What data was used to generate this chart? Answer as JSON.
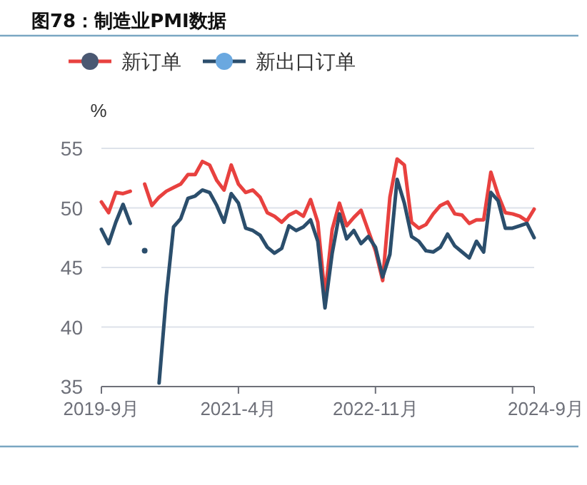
{
  "chart_data": {
    "type": "line",
    "title": "图78：制造业PMI数据",
    "ylabel": "%",
    "categories": [
      "2019-9月",
      null,
      null,
      null,
      null,
      null,
      null,
      null,
      null,
      null,
      null,
      null,
      null,
      null,
      null,
      null,
      null,
      null,
      null,
      "2021-4月",
      null,
      null,
      null,
      null,
      null,
      null,
      null,
      null,
      null,
      null,
      null,
      null,
      null,
      null,
      null,
      null,
      null,
      null,
      "2022-11月",
      null,
      null,
      null,
      null,
      null,
      null,
      null,
      null,
      null,
      null,
      null,
      null,
      null,
      null,
      null,
      null,
      null,
      null,
      null,
      null,
      null,
      "2024-9月"
    ],
    "series": [
      {
        "name": "新订单",
        "color": "#e8413f",
        "values": [
          50.5,
          49.6,
          51.3,
          51.2,
          51.4,
          null,
          52.0,
          50.2,
          50.9,
          51.4,
          51.7,
          52.0,
          52.8,
          52.8,
          53.9,
          53.6,
          52.3,
          51.5,
          53.6,
          52.0,
          51.3,
          51.5,
          50.9,
          49.6,
          49.3,
          48.8,
          49.4,
          49.7,
          49.3,
          50.7,
          48.8,
          42.6,
          48.2,
          50.4,
          48.5,
          49.2,
          49.8,
          48.1,
          46.4,
          43.9,
          50.9,
          54.1,
          53.6,
          48.8,
          48.3,
          48.6,
          49.5,
          50.2,
          50.5,
          49.5,
          49.4,
          48.7,
          49.0,
          49.0,
          53.0,
          51.1,
          49.6,
          49.5,
          49.3,
          48.9,
          49.9
        ]
      },
      {
        "name": "新出口订单",
        "color": "#2b4e6c",
        "values": [
          48.2,
          47.0,
          48.8,
          50.3,
          48.7,
          null,
          46.4,
          null,
          35.3,
          42.6,
          48.4,
          49.1,
          50.8,
          51.0,
          51.5,
          51.3,
          50.2,
          48.8,
          51.2,
          50.4,
          48.3,
          48.1,
          47.7,
          46.7,
          46.2,
          46.6,
          48.5,
          48.1,
          48.4,
          49.0,
          47.2,
          41.6,
          46.2,
          49.5,
          47.4,
          48.1,
          47.0,
          47.6,
          46.7,
          44.2,
          46.1,
          52.4,
          50.4,
          47.6,
          47.2,
          46.4,
          46.3,
          46.7,
          47.8,
          46.8,
          46.3,
          45.8,
          47.2,
          46.3,
          51.3,
          50.6,
          48.3,
          48.3,
          48.5,
          48.7,
          47.5
        ]
      }
    ],
    "ylim": [
      35,
      55
    ],
    "yticks": [
      35,
      40,
      45,
      50,
      55
    ],
    "grid": "y",
    "legend": "top"
  }
}
